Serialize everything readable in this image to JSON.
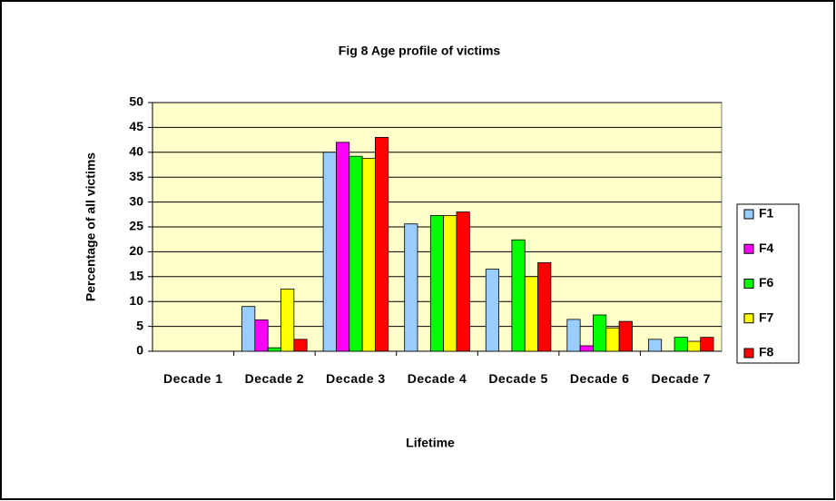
{
  "chart_data": {
    "type": "bar",
    "title": "Fig 8  Age profile of victims",
    "x_label": "Lifetime",
    "y_label": "Percentage of all victims",
    "categories": [
      "Decade 1",
      "Decade 2",
      "Decade 3",
      "Decade 4",
      "Decade 5",
      "Decade 6",
      "Decade 7"
    ],
    "series": [
      {
        "name": "F1",
        "color": "#99ccff",
        "values": [
          0,
          9,
          40,
          25.6,
          16.5,
          6.4,
          2.4
        ]
      },
      {
        "name": "F4",
        "color": "#ff00ff",
        "values": [
          0,
          6.3,
          42,
          0,
          0,
          1.1,
          0
        ]
      },
      {
        "name": "F6",
        "color": "#00ff00",
        "values": [
          0,
          0.7,
          39.2,
          27.3,
          22.4,
          7.3,
          2.8
        ]
      },
      {
        "name": "F7",
        "color": "#ffff00",
        "values": [
          0,
          12.5,
          38.8,
          27.3,
          15,
          4.7,
          2
        ]
      },
      {
        "name": "F8",
        "color": "#ff0000",
        "values": [
          0,
          2.4,
          43,
          28,
          17.8,
          6,
          2.8
        ]
      }
    ],
    "ylim": [
      0,
      50
    ],
    "yticks": [
      0,
      5,
      10,
      15,
      20,
      25,
      30,
      35,
      40,
      45,
      50
    ],
    "grid": true,
    "legend": "right"
  }
}
